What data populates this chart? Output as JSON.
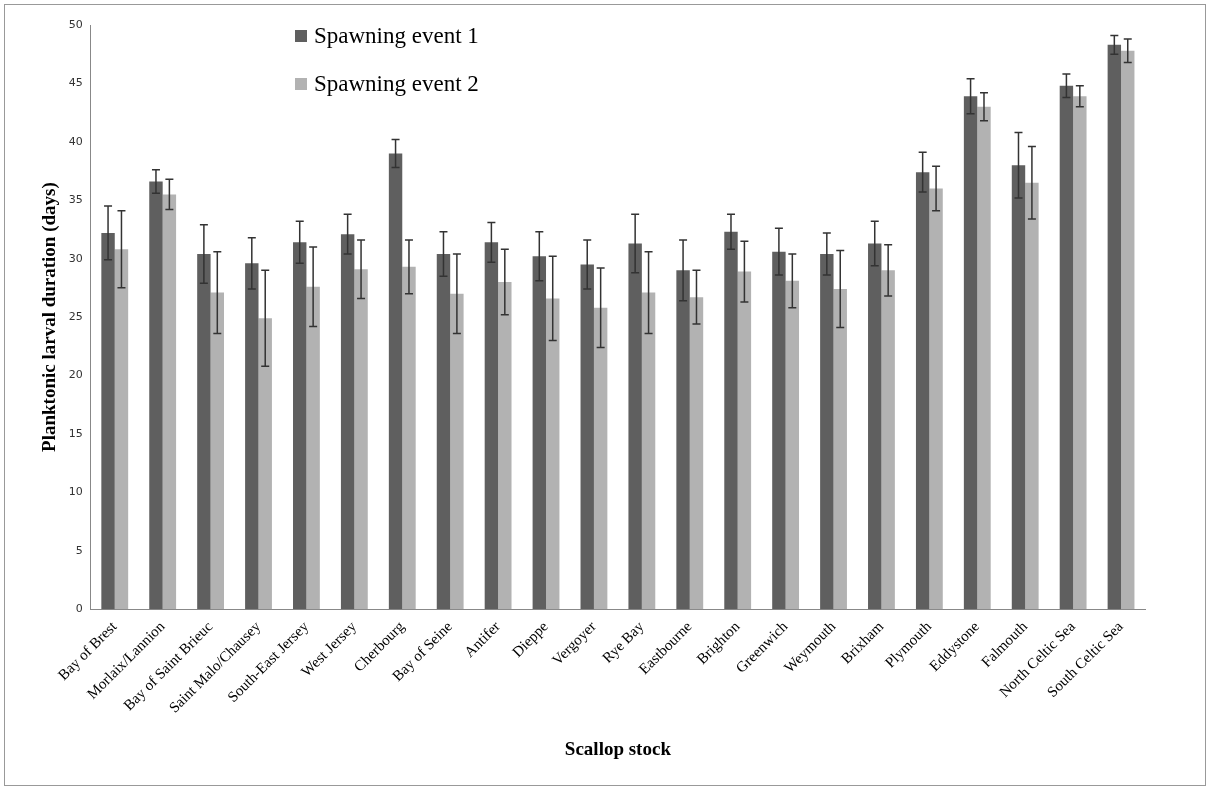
{
  "chart_data": {
    "type": "bar",
    "xlabel": "Scallop stock",
    "ylabel": "Planktonic larval duration (days)",
    "categories": [
      "Bay of Brest",
      "Morlaix/Lannion",
      "Bay of Saint Brieuc",
      "Saint Malo/Chausey",
      "South-East Jersey",
      "West Jersey",
      "Cherbourg",
      "Bay of Seine",
      "Antifer",
      "Dieppe",
      "Vergoyer",
      "Rye Bay",
      "Eastbourne",
      "Brighton",
      "Greenwich",
      "Weymouth",
      "Brixham",
      "Plymouth",
      "Eddystone",
      "Falmouth",
      "North Celtic Sea",
      "South Celtic Sea"
    ],
    "series": [
      {
        "name": "Spawning event 1",
        "color": "#5f5f5f",
        "values": [
          32.2,
          36.6,
          30.4,
          29.6,
          31.4,
          32.1,
          39.0,
          30.4,
          31.4,
          30.2,
          29.5,
          31.3,
          29.0,
          32.3,
          30.6,
          30.4,
          31.3,
          37.4,
          43.9,
          38.0,
          44.8,
          48.3
        ],
        "errors": [
          2.3,
          1.0,
          2.5,
          2.2,
          1.8,
          1.7,
          1.2,
          1.9,
          1.7,
          2.1,
          2.1,
          2.5,
          2.6,
          1.5,
          2.0,
          1.8,
          1.9,
          1.7,
          1.5,
          2.8,
          1.0,
          0.8
        ]
      },
      {
        "name": "Spawning event 2",
        "color": "#b2b2b2",
        "values": [
          30.8,
          35.5,
          27.1,
          24.9,
          27.6,
          29.1,
          29.3,
          27.0,
          28.0,
          26.6,
          25.8,
          27.1,
          26.7,
          28.9,
          28.1,
          27.4,
          29.0,
          36.0,
          43.0,
          36.5,
          43.9,
          47.8
        ],
        "errors": [
          3.3,
          1.3,
          3.5,
          4.1,
          3.4,
          2.5,
          2.3,
          3.4,
          2.8,
          3.6,
          3.4,
          3.5,
          2.3,
          2.6,
          2.3,
          3.3,
          2.2,
          1.9,
          1.2,
          3.1,
          0.9,
          1.0
        ]
      }
    ],
    "ylim": [
      0,
      50
    ],
    "yticks": [
      0,
      5,
      10,
      15,
      20,
      25,
      30,
      35,
      40,
      45,
      50
    ],
    "grid": false,
    "legend": "top left"
  }
}
